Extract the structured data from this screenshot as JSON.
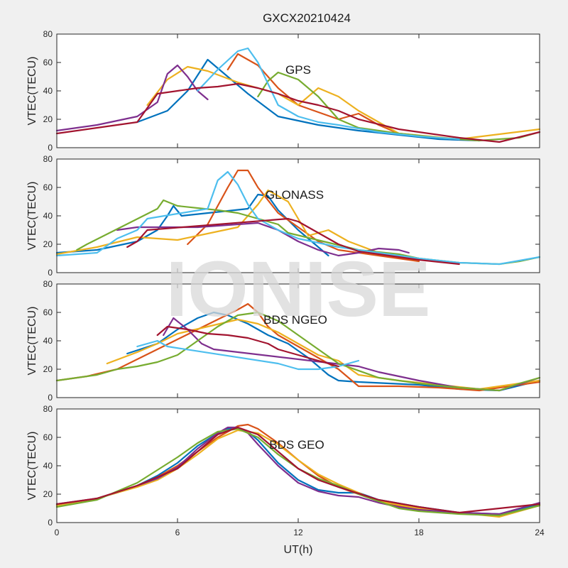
{
  "figure": {
    "title": "GXCX20210424",
    "watermark": "IONISE",
    "background": "#f0f0f0"
  },
  "chart_data": [
    {
      "type": "line",
      "panel_label": "GPS",
      "ylabel": "VTEC(TECU)",
      "xlabel": "",
      "xlim": [
        0,
        24
      ],
      "ylim": [
        0,
        80
      ],
      "xticks": [
        0,
        6,
        12,
        18,
        24
      ],
      "yticks": [
        0,
        20,
        40,
        60,
        80
      ],
      "show_x_tick_labels": false,
      "series": [
        {
          "color": "#0072BD",
          "x": [
            4.0,
            5.5,
            6.5,
            7.5,
            8.5,
            9.5,
            11.0,
            13.0,
            15.0,
            17.0,
            19.0,
            21.0
          ],
          "y": [
            18,
            26,
            40,
            62,
            50,
            38,
            22,
            16,
            12,
            9,
            6,
            5
          ]
        },
        {
          "color": "#D95319",
          "x": [
            8.5,
            9.0,
            10.0,
            11.0,
            12.0,
            13.0,
            14.0,
            15.0,
            16.0,
            17.0,
            19.0,
            21.0
          ],
          "y": [
            55,
            66,
            58,
            42,
            30,
            25,
            20,
            24,
            16,
            10,
            7,
            5
          ]
        },
        {
          "color": "#EDB120",
          "x": [
            4.5,
            5.5,
            6.5,
            7.5,
            9.0,
            10.0,
            11.0,
            12.0,
            13.0,
            14.0,
            15.0,
            17.0,
            20.0,
            24.0
          ],
          "y": [
            30,
            48,
            57,
            54,
            46,
            42,
            38,
            30,
            42,
            36,
            26,
            10,
            6,
            13
          ]
        },
        {
          "color": "#7E2F8E",
          "x": [
            0,
            1.0,
            2.0,
            3.0,
            4.0,
            5.0,
            5.5,
            6.0,
            6.5,
            7.0,
            7.5
          ],
          "y": [
            12,
            14,
            16,
            19,
            22,
            32,
            52,
            58,
            50,
            40,
            34
          ]
        },
        {
          "color": "#77AC30",
          "x": [
            10.0,
            10.5,
            11.0,
            12.0,
            13.0,
            13.5,
            14.0,
            15.0,
            17.0,
            19.0,
            21.0,
            23.0,
            24.0
          ],
          "y": [
            36,
            47,
            53,
            48,
            36,
            28,
            20,
            14,
            10,
            7,
            5,
            7,
            11
          ]
        },
        {
          "color": "#4DBEEE",
          "x": [
            7.0,
            8.0,
            9.0,
            9.5,
            10.0,
            10.5,
            11.0,
            12.0,
            13.0,
            14.0,
            16.0,
            18.0,
            20.0
          ],
          "y": [
            40,
            55,
            68,
            70,
            60,
            45,
            30,
            22,
            18,
            16,
            11,
            8,
            6
          ]
        },
        {
          "color": "#A2142F",
          "x": [
            0,
            2.0,
            4.0,
            5.0,
            6.0,
            7.0,
            8.0,
            9.0,
            10.0,
            11.0,
            12.0,
            13.0,
            14.0,
            15.0,
            17.0,
            20.0,
            22.0,
            24.0
          ],
          "y": [
            10,
            14,
            18,
            38,
            40,
            42,
            43,
            45,
            42,
            38,
            33,
            30,
            26,
            20,
            13,
            7,
            4,
            11
          ]
        }
      ]
    },
    {
      "type": "line",
      "panel_label": "GLONASS",
      "ylabel": "VTEC(TECU)",
      "xlabel": "",
      "xlim": [
        0,
        24
      ],
      "ylim": [
        0,
        80
      ],
      "xticks": [
        0,
        6,
        12,
        18,
        24
      ],
      "yticks": [
        0,
        20,
        40,
        60,
        80
      ],
      "show_x_tick_labels": false,
      "series": [
        {
          "color": "#0072BD",
          "x": [
            0,
            2.0,
            4.0,
            5.0,
            5.5,
            5.8,
            6.2,
            9.5,
            10.0,
            10.5,
            11.0,
            12.0,
            13.0,
            13.5
          ],
          "y": [
            14,
            16,
            22,
            30,
            40,
            47,
            40,
            45,
            55,
            54,
            44,
            30,
            18,
            12
          ]
        },
        {
          "color": "#D95319",
          "x": [
            6.5,
            7.5,
            8.5,
            9.0,
            9.5,
            10.0,
            11.0,
            12.0,
            13.0,
            14.0,
            16.0,
            18.0
          ],
          "y": [
            20,
            34,
            60,
            72,
            72,
            60,
            42,
            32,
            22,
            16,
            12,
            8
          ]
        },
        {
          "color": "#EDB120",
          "x": [
            0,
            2.0,
            4.0,
            5.0,
            6.0,
            9.0,
            10.0,
            10.5,
            11.5,
            12.5,
            13.5,
            14.5,
            16.0,
            18.0
          ],
          "y": [
            13,
            18,
            25,
            24,
            23,
            32,
            48,
            58,
            50,
            26,
            30,
            22,
            14,
            10
          ]
        },
        {
          "color": "#7E2F8E",
          "x": [
            3.0,
            4.0,
            6.0,
            7.0,
            8.0,
            10.0,
            11.0,
            12.0,
            13.0,
            14.0,
            15.0,
            16.0,
            17.0,
            17.5
          ],
          "y": [
            30,
            32,
            32,
            32,
            33,
            35,
            30,
            22,
            16,
            12,
            14,
            17,
            16,
            14
          ]
        },
        {
          "color": "#77AC30",
          "x": [
            1.0,
            1.5,
            5.0,
            5.3,
            6.0,
            8.0,
            9.0,
            10.0,
            11.0,
            11.5,
            15.0,
            17.0,
            18.0,
            20.0,
            22.0,
            23.0,
            24.0
          ],
          "y": [
            16,
            20,
            45,
            51,
            47,
            44,
            42,
            38,
            34,
            28,
            16,
            13,
            10,
            7,
            6,
            8,
            11
          ]
        },
        {
          "color": "#4DBEEE",
          "x": [
            0,
            2.0,
            3.0,
            4.0,
            4.5,
            7.5,
            8.0,
            8.5,
            9.0,
            9.5,
            10.0,
            11.0,
            12.0,
            14.0,
            16.0,
            18.0,
            20.0,
            22.0,
            24.0
          ],
          "y": [
            12,
            14,
            24,
            30,
            38,
            45,
            65,
            71,
            62,
            48,
            38,
            30,
            24,
            18,
            14,
            10,
            7,
            6,
            11
          ]
        },
        {
          "color": "#A2142F",
          "x": [
            3.5,
            4.0,
            4.5,
            11.5,
            12.0,
            13.0,
            14.0,
            15.0,
            16.0,
            17.0,
            18.0,
            20.0
          ],
          "y": [
            18,
            22,
            30,
            38,
            36,
            28,
            20,
            15,
            13,
            11,
            9,
            6
          ]
        }
      ]
    },
    {
      "type": "line",
      "panel_label": "BDS NGEO",
      "ylabel": "VTEC(TECU)",
      "xlabel": "",
      "xlim": [
        0,
        24
      ],
      "ylim": [
        0,
        80
      ],
      "xticks": [
        0,
        6,
        12,
        18,
        24
      ],
      "yticks": [
        0,
        20,
        40,
        60,
        80
      ],
      "show_x_tick_labels": false,
      "series": [
        {
          "color": "#0072BD",
          "x": [
            3.5,
            5.0,
            6.0,
            7.0,
            7.8,
            8.5,
            9.5,
            10.5,
            11.5,
            12.5,
            13.5,
            14.0,
            15.0,
            18.0,
            20.0,
            22.0,
            24.0
          ],
          "y": [
            31,
            38,
            48,
            56,
            60,
            58,
            52,
            44,
            38,
            28,
            16,
            12,
            11,
            9,
            6,
            5,
            12
          ]
        },
        {
          "color": "#D95319",
          "x": [
            0,
            1.5,
            3.0,
            9.0,
            9.5,
            10.0,
            10.5,
            11.0,
            12.0,
            13.0,
            14.0,
            15.0,
            17.0,
            19.0,
            21.0,
            24.0
          ],
          "y": [
            12,
            15,
            20,
            62,
            66,
            60,
            50,
            44,
            36,
            28,
            20,
            8,
            8,
            7,
            5,
            11
          ]
        },
        {
          "color": "#EDB120",
          "x": [
            2.5,
            4.0,
            5.0,
            6.0,
            7.5,
            9.0,
            10.0,
            11.0,
            12.0,
            13.0,
            14.0,
            15.0,
            17.0,
            19.0,
            21.0,
            24.0
          ],
          "y": [
            24,
            32,
            38,
            45,
            50,
            55,
            52,
            46,
            38,
            30,
            26,
            16,
            12,
            9,
            6,
            12
          ]
        },
        {
          "color": "#7E2F8E",
          "x": [
            5.3,
            5.8,
            6.5,
            7.2,
            7.8,
            15.0,
            16.0,
            18.0,
            20.0,
            22.0,
            24.0
          ],
          "y": [
            44,
            56,
            48,
            38,
            34,
            22,
            18,
            12,
            7,
            5,
            14
          ]
        },
        {
          "color": "#77AC30",
          "x": [
            0,
            2.0,
            3.0,
            4.0,
            5.0,
            6.0,
            7.0,
            8.0,
            9.0,
            10.0,
            11.0,
            12.0,
            13.0,
            14.0,
            16.0,
            18.0,
            20.0,
            22.0,
            23.0,
            24.0
          ],
          "y": [
            12,
            16,
            20,
            22,
            25,
            30,
            40,
            50,
            58,
            60,
            54,
            44,
            34,
            24,
            14,
            10,
            7,
            5,
            10,
            14
          ]
        },
        {
          "color": "#4DBEEE",
          "x": [
            4.0,
            5.0,
            5.5,
            11.0,
            12.0,
            13.0,
            14.0,
            15.0
          ],
          "y": [
            36,
            40,
            36,
            24,
            20,
            20,
            22,
            26
          ]
        },
        {
          "color": "#A2142F",
          "x": [
            5.0,
            5.5,
            6.5,
            7.5,
            8.5,
            9.5,
            10.5,
            11.0,
            12.0,
            13.0,
            14.0
          ],
          "y": [
            44,
            50,
            48,
            45,
            44,
            42,
            38,
            34,
            30,
            26,
            22
          ]
        }
      ]
    },
    {
      "type": "line",
      "panel_label": "BDS GEO",
      "ylabel": "VTEC(TECU)",
      "xlabel": "UT(h)",
      "xlim": [
        0,
        24
      ],
      "ylim": [
        0,
        80
      ],
      "xticks": [
        0,
        6,
        12,
        18,
        24
      ],
      "yticks": [
        0,
        20,
        40,
        60,
        80
      ],
      "show_x_tick_labels": true,
      "series": [
        {
          "color": "#0072BD",
          "x": [
            0,
            1.0,
            2.0,
            3.0,
            4.0,
            5.0,
            6.0,
            7.0,
            8.0,
            8.5,
            9.0,
            9.5,
            10.0,
            10.5,
            11.0,
            12.0,
            13.0,
            14.0,
            15.0,
            16.0,
            18.0,
            20.0,
            22.0,
            24.0
          ],
          "y": [
            13,
            14,
            17,
            21,
            26,
            33,
            42,
            54,
            63,
            66,
            66,
            64,
            58,
            50,
            42,
            30,
            23,
            21,
            21,
            16,
            11,
            7,
            6,
            13
          ]
        },
        {
          "color": "#D95319",
          "x": [
            0,
            2.0,
            4.0,
            5.0,
            6.0,
            7.0,
            8.0,
            9.0,
            9.5,
            10.0,
            11.0,
            12.0,
            13.0,
            14.0,
            15.0,
            16.0,
            17.0,
            18.0,
            20.0,
            22.0,
            24.0
          ],
          "y": [
            12,
            17,
            26,
            32,
            40,
            50,
            60,
            68,
            69,
            66,
            56,
            44,
            33,
            25,
            20,
            15,
            12,
            10,
            7,
            5,
            12
          ]
        },
        {
          "color": "#EDB120",
          "x": [
            0,
            2.0,
            4.0,
            5.0,
            6.0,
            7.0,
            8.0,
            9.0,
            10.0,
            11.0,
            12.0,
            13.0,
            14.0,
            15.0,
            16.0,
            18.0,
            20.0,
            22.0,
            24.0
          ],
          "y": [
            12,
            17,
            25,
            30,
            38,
            48,
            59,
            65,
            63,
            55,
            44,
            34,
            27,
            21,
            15,
            10,
            7,
            4,
            12
          ]
        },
        {
          "color": "#7E2F8E",
          "x": [
            0,
            2.0,
            4.0,
            5.0,
            6.0,
            7.0,
            8.0,
            8.5,
            9.0,
            9.5,
            10.0,
            11.0,
            12.0,
            13.0,
            14.0,
            15.0,
            16.0,
            17.0,
            18.0,
            20.0,
            22.0,
            23.0,
            24.0
          ],
          "y": [
            13,
            17,
            26,
            31,
            39,
            52,
            63,
            67,
            67,
            63,
            55,
            40,
            28,
            22,
            19,
            18,
            14,
            11,
            9,
            7,
            6,
            10,
            14
          ]
        },
        {
          "color": "#77AC30",
          "x": [
            0,
            2.0,
            4.0,
            5.0,
            6.0,
            7.0,
            8.0,
            9.0,
            10.0,
            11.0,
            12.0,
            13.0,
            14.0,
            15.0,
            16.0,
            17.0,
            18.0,
            20.0,
            22.0,
            24.0
          ],
          "y": [
            11,
            16,
            28,
            37,
            46,
            56,
            64,
            66,
            60,
            48,
            38,
            31,
            26,
            20,
            15,
            10,
            8,
            6,
            5,
            12
          ]
        },
        {
          "color": "#A2142F",
          "x": [
            0,
            2.0,
            4.0,
            6.0,
            7.0,
            8.0,
            9.0,
            10.0,
            11.0,
            12.0,
            13.0,
            14.0,
            16.0,
            18.0,
            20.0,
            24.0
          ],
          "y": [
            13,
            17,
            26,
            38,
            50,
            62,
            67,
            62,
            50,
            38,
            30,
            25,
            16,
            11,
            7,
            13
          ]
        }
      ]
    }
  ]
}
